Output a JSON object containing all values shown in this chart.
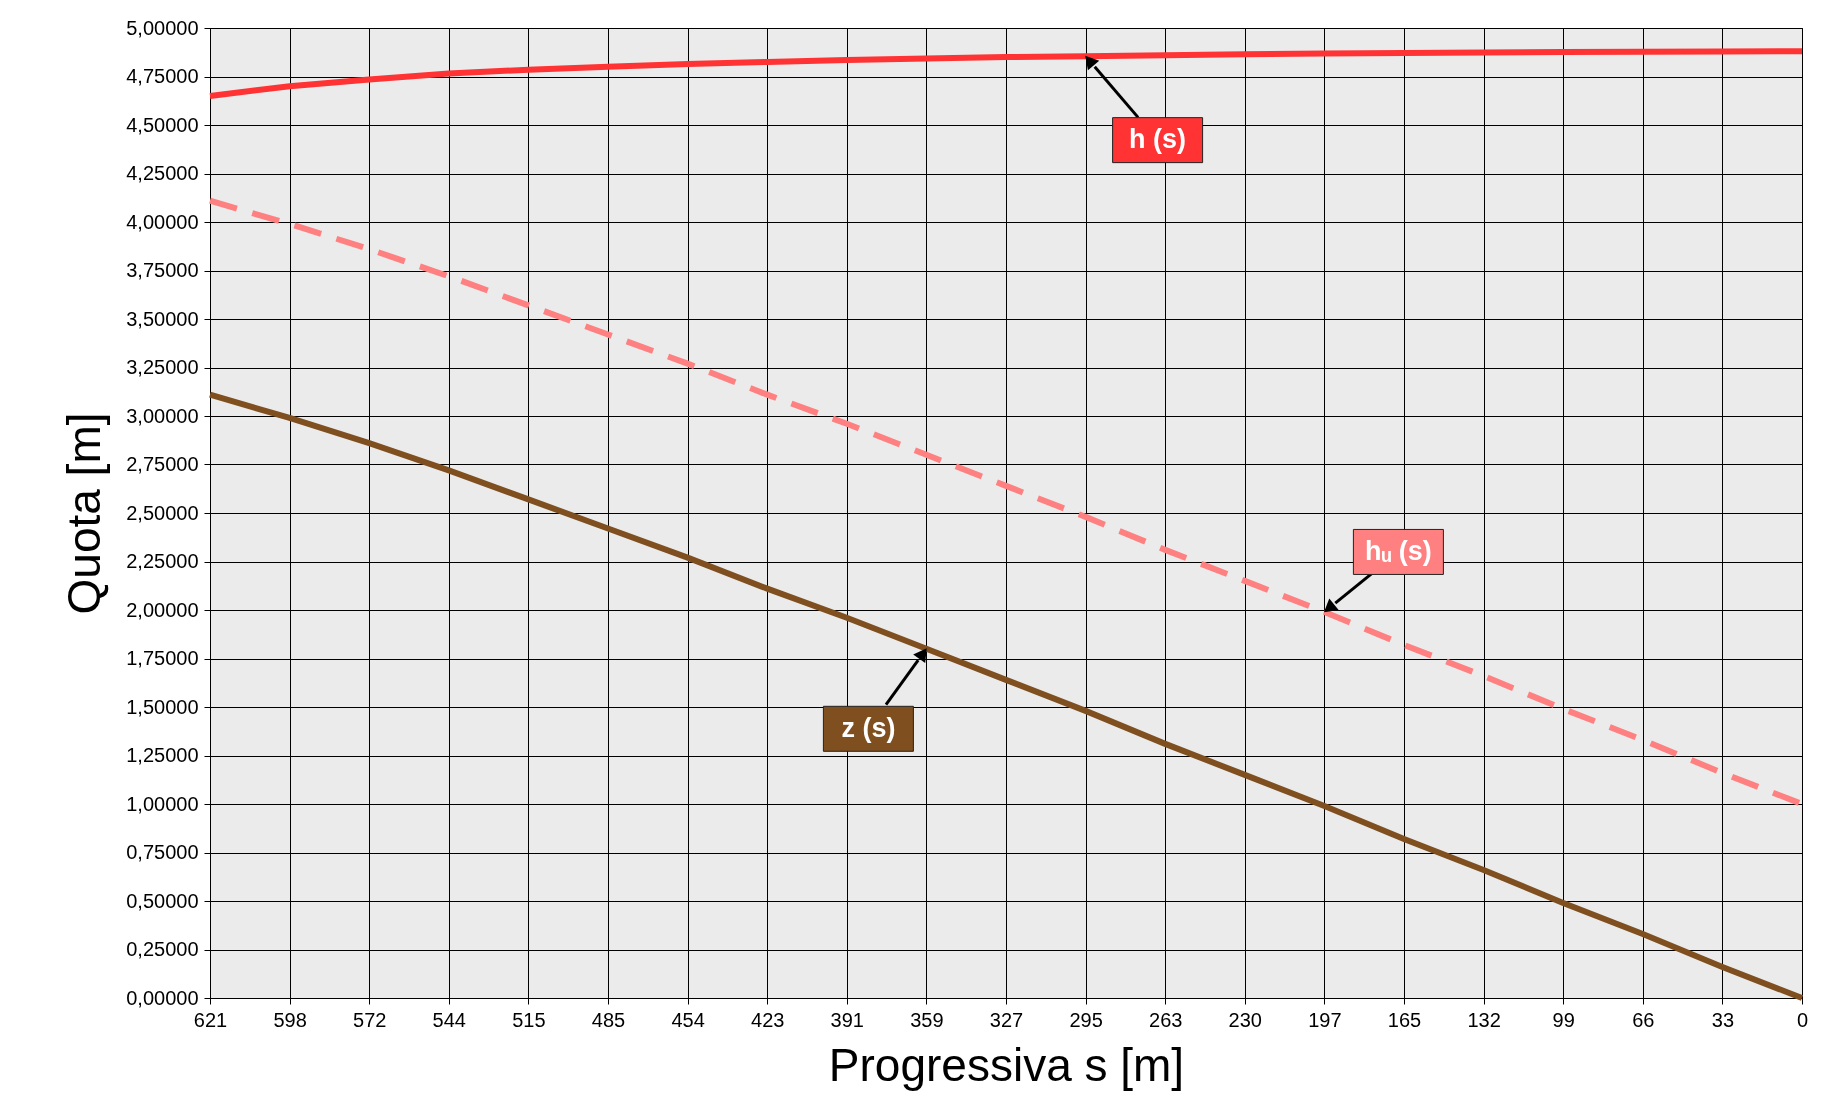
{
  "chart_data": {
    "type": "line",
    "xlabel": "Progressiva s [m]",
    "ylabel": "Quota [m]",
    "categories": [
      "621",
      "598",
      "572",
      "544",
      "515",
      "485",
      "454",
      "423",
      "391",
      "359",
      "327",
      "295",
      "263",
      "230",
      "197",
      "165",
      "132",
      "99",
      "66",
      "33",
      "0"
    ],
    "series": [
      {
        "color": "#ff3333",
        "line_style": "solid",
        "values": [
          4.65,
          4.7,
          4.735,
          4.765,
          4.785,
          4.8,
          4.815,
          4.825,
          4.835,
          4.843,
          4.85,
          4.855,
          4.86,
          4.865,
          4.868,
          4.871,
          4.874,
          4.876,
          4.878,
          4.879,
          4.88
        ]
      },
      {
        "color": "#ff8080",
        "line_style": "dashed",
        "values": [
          4.11,
          3.99,
          3.86,
          3.72,
          3.57,
          3.42,
          3.27,
          3.11,
          2.96,
          2.8,
          2.64,
          2.48,
          2.31,
          2.15,
          1.99,
          1.82,
          1.66,
          1.49,
          1.33,
          1.16,
          1.0
        ]
      },
      {
        "color": "#7f4f1f",
        "line_style": "solid",
        "values": [
          3.11,
          2.99,
          2.86,
          2.72,
          2.57,
          2.42,
          2.27,
          2.11,
          1.96,
          1.8,
          1.64,
          1.48,
          1.31,
          1.15,
          0.99,
          0.82,
          0.66,
          0.49,
          0.33,
          0.16,
          0.0
        ]
      }
    ],
    "ylim": [
      0,
      5
    ],
    "yticks": [
      {
        "value": 0,
        "label": "0,00000"
      },
      {
        "value": 0.25,
        "label": "0,25000"
      },
      {
        "value": 0.5,
        "label": "0,50000"
      },
      {
        "value": 0.75,
        "label": "0,75000"
      },
      {
        "value": 1,
        "label": "1,00000"
      },
      {
        "value": 1.25,
        "label": "1,25000"
      },
      {
        "value": 1.5,
        "label": "1,50000"
      },
      {
        "value": 1.75,
        "label": "1,75000"
      },
      {
        "value": 2,
        "label": "2,00000"
      },
      {
        "value": 2.25,
        "label": "2,25000"
      },
      {
        "value": 2.5,
        "label": "2,50000"
      },
      {
        "value": 2.75,
        "label": "2,75000"
      },
      {
        "value": 3,
        "label": "3,00000"
      },
      {
        "value": 3.25,
        "label": "3,25000"
      },
      {
        "value": 3.5,
        "label": "3,50000"
      },
      {
        "value": 3.75,
        "label": "3,75000"
      },
      {
        "value": 4,
        "label": "4,00000"
      },
      {
        "value": 4.25,
        "label": "4,25000"
      },
      {
        "value": 4.5,
        "label": "4,50000"
      },
      {
        "value": 4.75,
        "label": "4,75000"
      },
      {
        "value": 5,
        "label": "5,00000"
      }
    ],
    "annotations": [
      {
        "text": "h (s)",
        "x": "295",
        "y": 4.855
      },
      {
        "text": "hᵤ (s)",
        "x": "197",
        "y": 1.99
      },
      {
        "text": "z (s)",
        "x": "359",
        "y": 1.8
      }
    ],
    "grid": true,
    "marker": "none"
  }
}
